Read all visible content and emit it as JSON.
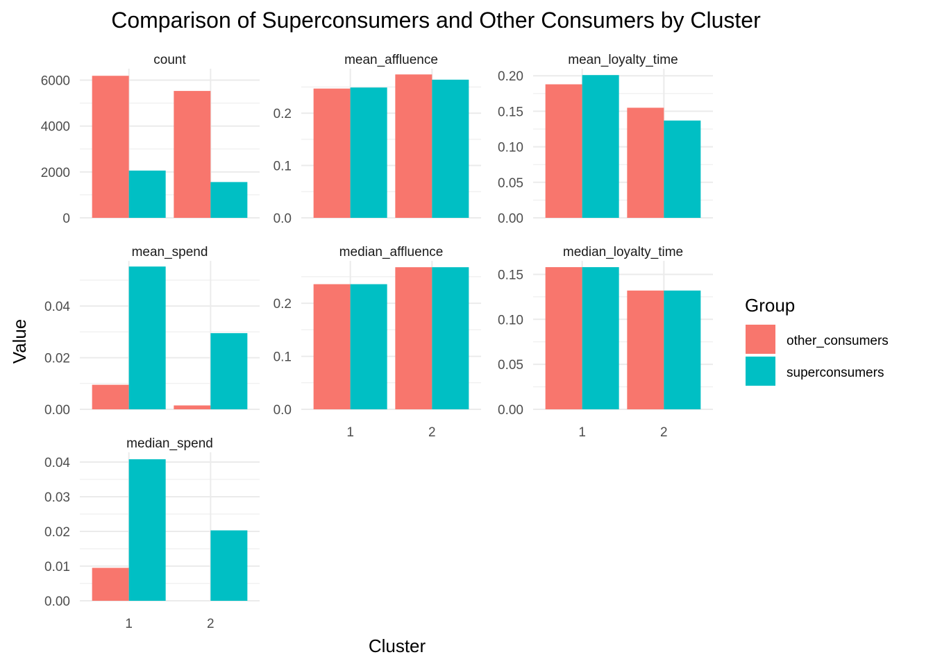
{
  "chart_data": {
    "type": "bar",
    "title": "Comparison of Superconsumers and Other Consumers by Cluster",
    "xlabel": "Cluster",
    "ylabel": "Value",
    "categories": [
      "1",
      "2"
    ],
    "legend": {
      "title": "Group",
      "position": "right",
      "entries": [
        "other_consumers",
        "superconsumers"
      ]
    },
    "colors": {
      "other_consumers": "#F8766D",
      "superconsumers": "#00BFC4",
      "grid": "#EBEBEB"
    },
    "grid": true,
    "facets": [
      {
        "name": "count",
        "ylim": [
          0,
          6500
        ],
        "ticks": [
          0,
          2000,
          4000,
          6000
        ],
        "tick_labels": [
          "0",
          "2000",
          "4000",
          "6000"
        ],
        "series": [
          {
            "name": "other_consumers",
            "values": [
              6190,
              5530
            ]
          },
          {
            "name": "superconsumers",
            "values": [
              2060,
              1560
            ]
          }
        ]
      },
      {
        "name": "mean_affluence",
        "ylim": [
          0,
          0.285
        ],
        "ticks": [
          0,
          0.1,
          0.2
        ],
        "tick_labels": [
          "0.0",
          "0.1",
          "0.2"
        ],
        "series": [
          {
            "name": "other_consumers",
            "values": [
              0.247,
              0.274
            ]
          },
          {
            "name": "superconsumers",
            "values": [
              0.249,
              0.264
            ]
          }
        ]
      },
      {
        "name": "mean_loyalty_time",
        "ylim": [
          0,
          0.21
        ],
        "ticks": [
          0,
          0.05,
          0.1,
          0.15,
          0.2
        ],
        "tick_labels": [
          "0.00",
          "0.05",
          "0.10",
          "0.15",
          "0.20"
        ],
        "series": [
          {
            "name": "other_consumers",
            "values": [
              0.188,
              0.155
            ]
          },
          {
            "name": "superconsumers",
            "values": [
              0.201,
              0.137
            ]
          }
        ]
      },
      {
        "name": "mean_spend",
        "ylim": [
          0,
          0.0575
        ],
        "ticks": [
          0,
          0.02,
          0.04
        ],
        "tick_labels": [
          "0.00",
          "0.02",
          "0.04"
        ],
        "series": [
          {
            "name": "other_consumers",
            "values": [
              0.0095,
              0.0015
            ]
          },
          {
            "name": "superconsumers",
            "values": [
              0.0553,
              0.0295
            ]
          }
        ]
      },
      {
        "name": "median_affluence",
        "ylim": [
          0,
          0.28
        ],
        "ticks": [
          0,
          0.1,
          0.2
        ],
        "tick_labels": [
          "0.0",
          "0.1",
          "0.2"
        ],
        "series": [
          {
            "name": "other_consumers",
            "values": [
              0.236,
              0.268
            ]
          },
          {
            "name": "superconsumers",
            "values": [
              0.236,
              0.268
            ]
          }
        ]
      },
      {
        "name": "median_loyalty_time",
        "ylim": [
          0,
          0.165
        ],
        "ticks": [
          0,
          0.05,
          0.1,
          0.15
        ],
        "tick_labels": [
          "0.00",
          "0.05",
          "0.10",
          "0.15"
        ],
        "series": [
          {
            "name": "other_consumers",
            "values": [
              0.158,
              0.132
            ]
          },
          {
            "name": "superconsumers",
            "values": [
              0.158,
              0.132
            ]
          }
        ]
      },
      {
        "name": "median_spend",
        "ylim": [
          0,
          0.0428
        ],
        "ticks": [
          0,
          0.01,
          0.02,
          0.03,
          0.04
        ],
        "tick_labels": [
          "0.00",
          "0.01",
          "0.02",
          "0.03",
          "0.04"
        ],
        "series": [
          {
            "name": "other_consumers",
            "values": [
              0.0095,
              0.0
            ]
          },
          {
            "name": "superconsumers",
            "values": [
              0.0408,
              0.0203
            ]
          }
        ]
      }
    ]
  }
}
